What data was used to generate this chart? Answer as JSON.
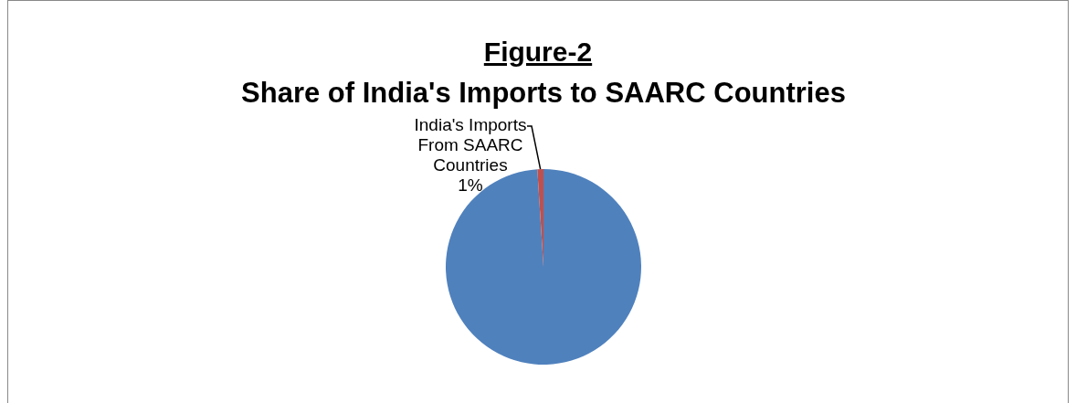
{
  "chart_data": {
    "type": "pie",
    "title": "Figure-2",
    "subtitle": "Share of India's Imports to SAARC Countries",
    "categories": [
      null,
      "India's Imports From SAARC Countries"
    ],
    "values": [
      99,
      1
    ],
    "colors": [
      "#4f81bd",
      "#c0504d"
    ],
    "value_labels": [
      null,
      "1%"
    ]
  }
}
